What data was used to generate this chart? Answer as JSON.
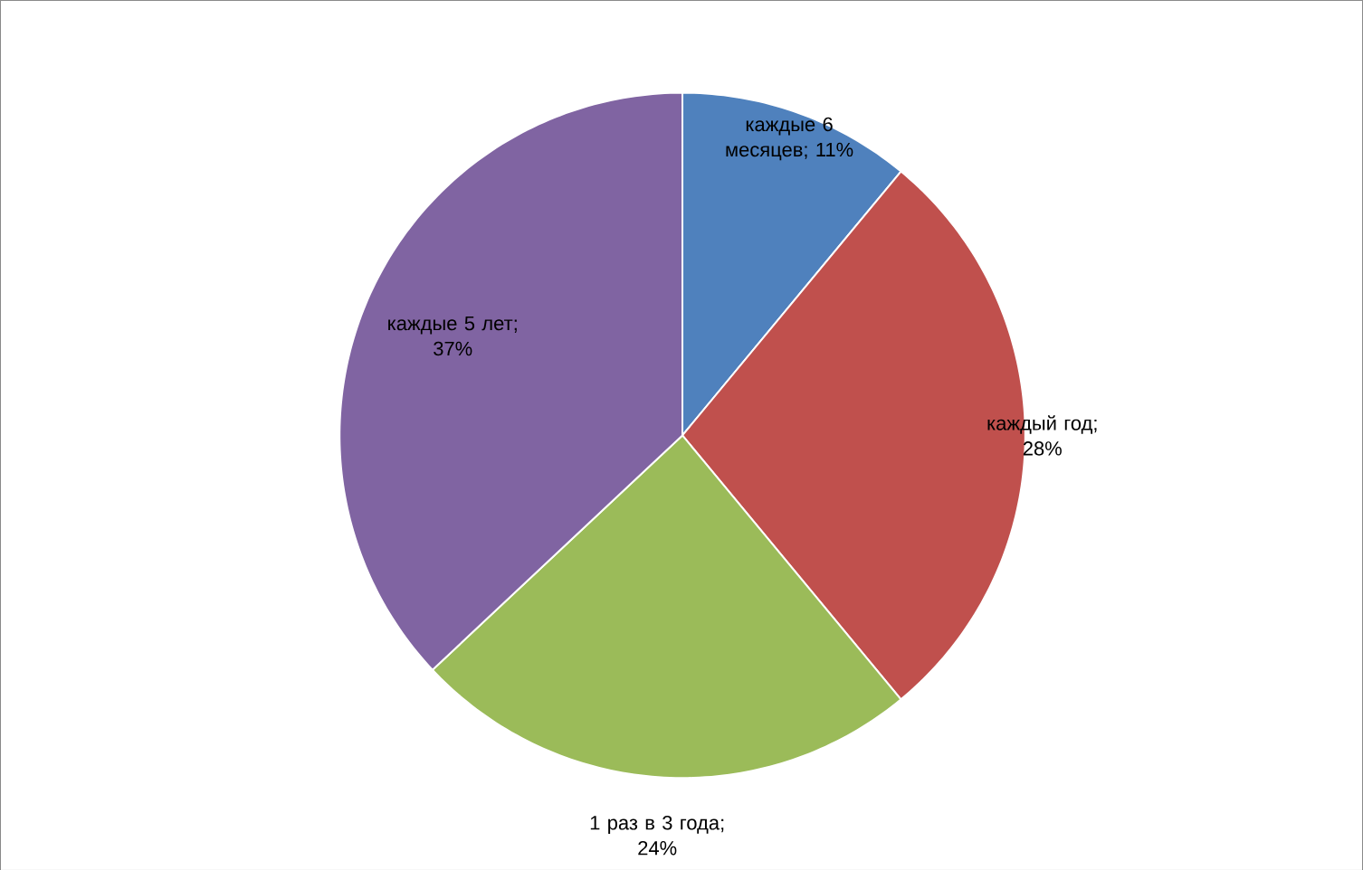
{
  "chart_data": {
    "type": "pie",
    "categories": [
      "каждые 6 месяцев",
      "каждый год",
      "1 раз в 3 года",
      "каждые 5 лет"
    ],
    "values": [
      11,
      28,
      24,
      37
    ],
    "value_labels": [
      "; 11%",
      "; 28%",
      "; 24%",
      "; 37%"
    ],
    "colors": [
      "#4f81bd",
      "#c0504d",
      "#9bbb59",
      "#8064a2"
    ]
  }
}
